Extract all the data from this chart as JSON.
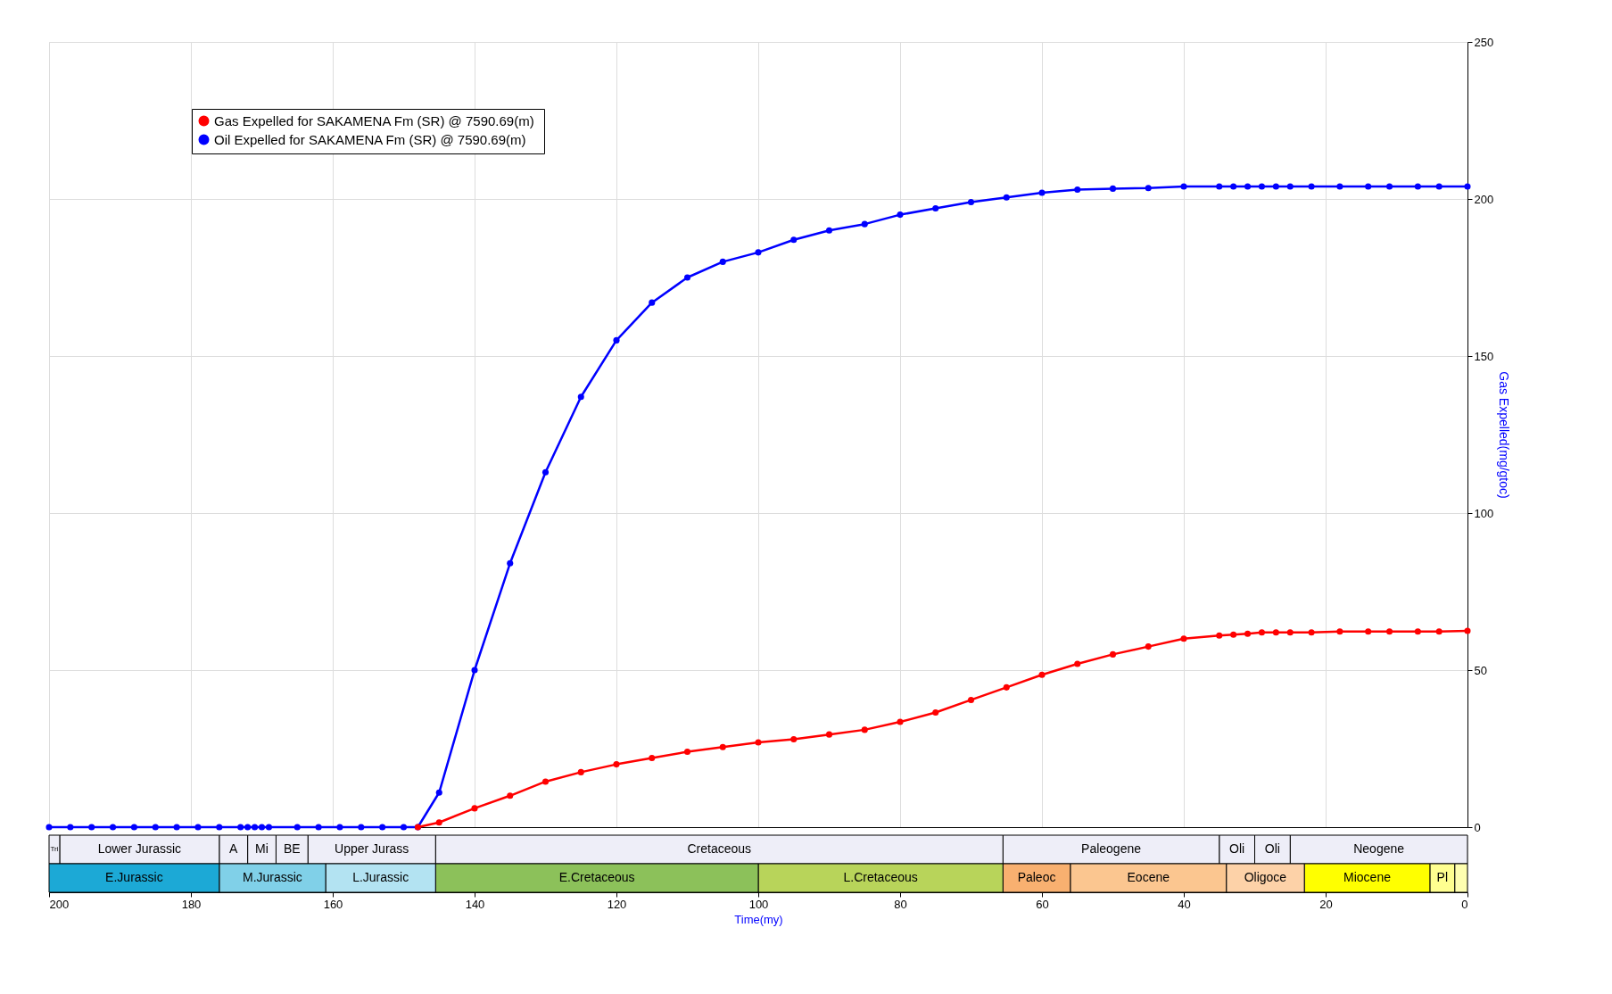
{
  "chart_data": [
    {
      "type": "line",
      "ylabel": "Gas Expelled(mg/gtoc)",
      "xlim": [
        200,
        0
      ],
      "xticks": [
        200,
        180,
        160,
        140,
        120,
        100,
        80,
        60,
        40,
        20,
        0
      ],
      "ylim": [
        0,
        250
      ],
      "yticks": [
        0,
        50,
        100,
        150,
        200,
        250
      ],
      "tick_labels": "y",
      "grid": true,
      "legend": "top left",
      "marker": "circle",
      "line_style": "solid",
      "series": [
        {
          "name": "Gas Expelled for  SAKAMENA Fm (SR) @ 7590.69(m)",
          "color": "#ff0000",
          "x": [
            148,
            145,
            140,
            135,
            130,
            125,
            120,
            115,
            110,
            105,
            100,
            95,
            90,
            85,
            80,
            75,
            70,
            65,
            60,
            55,
            50,
            45,
            40,
            35,
            33,
            31,
            29,
            27,
            25,
            22,
            18,
            14,
            11,
            7,
            4,
            0
          ],
          "values": [
            0,
            1.5,
            6,
            10,
            14.5,
            17.5,
            20,
            22,
            24,
            25.5,
            27,
            28,
            29.5,
            31,
            33.5,
            36.5,
            40.5,
            44.5,
            48.5,
            52,
            55,
            57.5,
            60,
            61,
            61.3,
            61.6,
            62,
            62,
            62,
            62,
            62.3,
            62.3,
            62.3,
            62.3,
            62.3,
            62.5
          ]
        },
        {
          "name": "Oil Expelled for  SAKAMENA Fm (SR) @ 7590.69(m)",
          "color": "#0000ff",
          "x": [
            200,
            197,
            194,
            191,
            188,
            185,
            182,
            179,
            176,
            173,
            172,
            171,
            170,
            169,
            165,
            162,
            159,
            156,
            153,
            150,
            148,
            145,
            140,
            135,
            130,
            125,
            120,
            115,
            110,
            105,
            100,
            95,
            90,
            85,
            80,
            75,
            70,
            65,
            60,
            55,
            50,
            45,
            40,
            35,
            33,
            31,
            29,
            27,
            25,
            22,
            18,
            14,
            11,
            7,
            4,
            0
          ],
          "values": [
            0,
            0,
            0,
            0,
            0,
            0,
            0,
            0,
            0,
            0,
            0,
            0,
            0,
            0,
            0,
            0,
            0,
            0,
            0,
            0,
            0,
            11,
            50,
            84,
            113,
            137,
            155,
            167,
            175,
            180,
            183,
            187,
            190,
            192,
            195,
            197,
            199,
            200.5,
            202,
            203,
            203.3,
            203.5,
            204,
            204,
            204,
            204,
            204,
            204,
            204,
            204,
            204,
            204,
            204,
            204,
            204,
            204
          ]
        }
      ]
    },
    {
      "type": "bar",
      "orientation": "horizontal",
      "stacked": true,
      "categories": [
        null,
        null
      ],
      "xlabel": "Time(my)",
      "xlim": [
        200,
        0
      ],
      "xticks": [
        200,
        180,
        160,
        140,
        120,
        100,
        80,
        60,
        40,
        20,
        0
      ],
      "tick_labels": "x",
      "series": [
        {
          "name": "Neogene",
          "color": "#eeeef8",
          "values": [
            25,
            null
          ]
        },
        {
          "name": "Oli",
          "color": "#eeeef8",
          "values": [
            5,
            null
          ]
        },
        {
          "name": "Oli",
          "color": "#eeeef8",
          "values": [
            5,
            null
          ]
        },
        {
          "name": "Paleogene",
          "color": "#eeeef8",
          "values": [
            30.5,
            null
          ]
        },
        {
          "name": "Cretaceous",
          "color": "#eeeef8",
          "values": [
            80,
            null
          ]
        },
        {
          "name": "Upper Jurass",
          "color": "#eeeef8",
          "values": [
            18,
            null
          ]
        },
        {
          "name": "BE",
          "color": "#eeeef8",
          "values": [
            4.5,
            null
          ]
        },
        {
          "name": "Mi",
          "color": "#eeeef8",
          "values": [
            4,
            null
          ]
        },
        {
          "name": "A",
          "color": "#eeeef8",
          "values": [
            4,
            null
          ]
        },
        {
          "name": "Lower Jurassic",
          "color": "#eeeef8",
          "values": [
            22.5,
            null
          ]
        },
        {
          "name": "Tri",
          "color": "#eeeef8",
          "values": [
            1.5,
            null
          ]
        },
        {
          "color": "#ffffb0",
          "values": [
            null,
            1.8
          ]
        },
        {
          "name": "Pl",
          "color": "#ffff90",
          "values": [
            null,
            3.5
          ]
        },
        {
          "name": "Miocene",
          "color": "#ffff00",
          "values": [
            null,
            17.7
          ]
        },
        {
          "name": "Oligoce",
          "color": "#fdd2a8",
          "values": [
            null,
            11
          ]
        },
        {
          "name": "Eocene",
          "color": "#fbc690",
          "values": [
            null,
            22
          ]
        },
        {
          "name": "Paleoc",
          "color": "#f8b070",
          "values": [
            null,
            9.5
          ]
        },
        {
          "name": "L.Cretaceous",
          "color": "#b8d45a",
          "values": [
            null,
            34.5
          ]
        },
        {
          "name": "E.Cretaceous",
          "color": "#8cc15a",
          "values": [
            null,
            45.5
          ]
        },
        {
          "name": "L.Jurassic",
          "color": "#b3e3f2",
          "values": [
            null,
            15.5
          ]
        },
        {
          "name": "M.Jurassic",
          "color": "#80d0e8",
          "values": [
            null,
            15
          ]
        },
        {
          "name": "E.Jurassic",
          "color": "#1ca9d6",
          "values": [
            null,
            24
          ]
        }
      ]
    }
  ]
}
